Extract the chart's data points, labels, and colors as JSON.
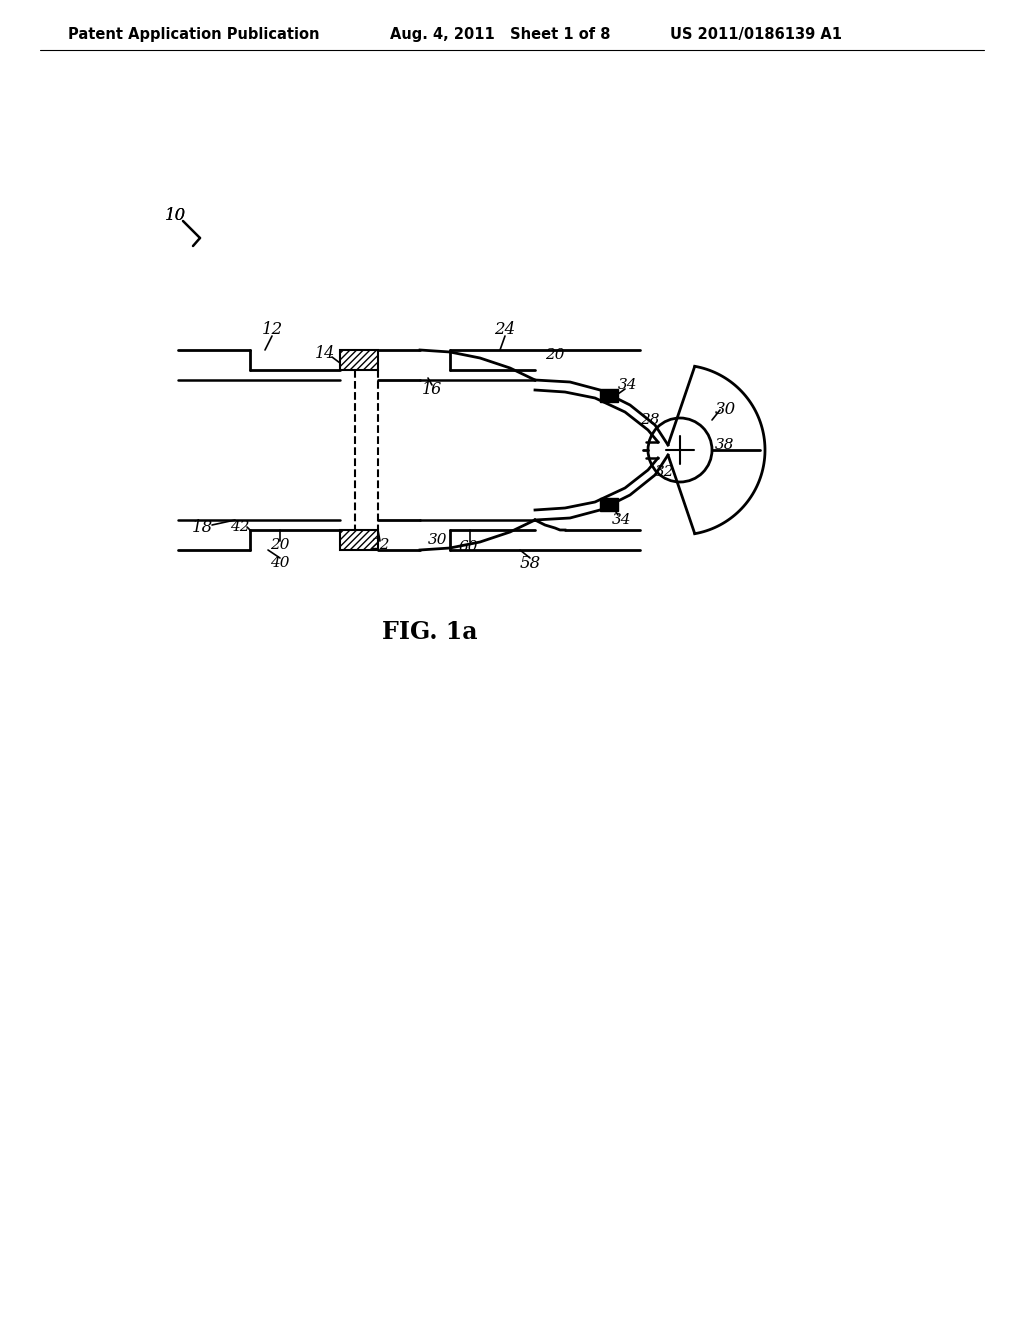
{
  "bg_color": "#ffffff",
  "header_left": "Patent Application Publication",
  "header_mid": "Aug. 4, 2011   Sheet 1 of 8",
  "header_right": "US 2011/0186139 A1",
  "figure_label": "FIG. 1a",
  "header_fontsize": 10.5,
  "fig_label_fontsize": 17,
  "label_fontsize": 11.5
}
